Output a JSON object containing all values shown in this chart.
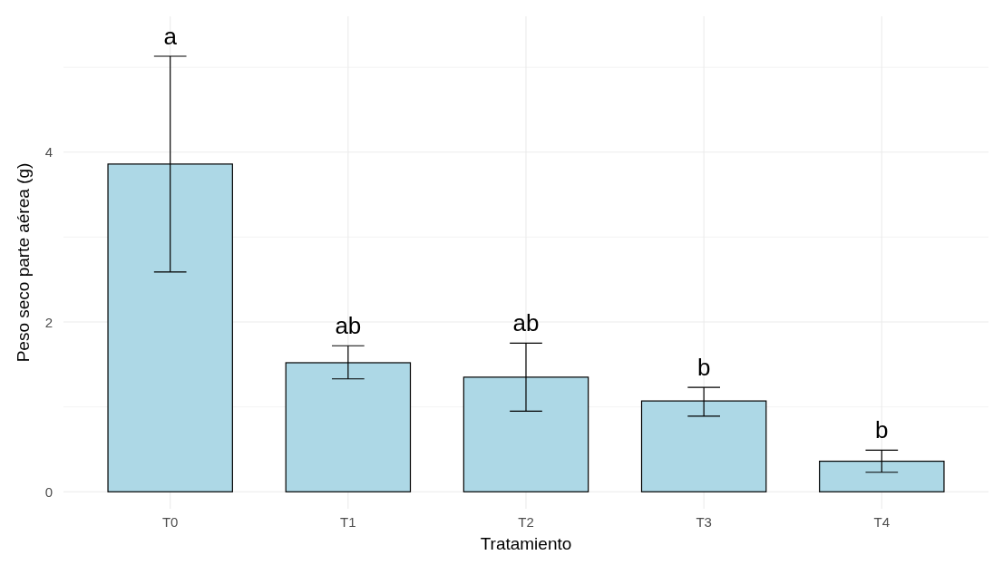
{
  "chart_data": {
    "type": "bar",
    "xlabel": "Tratamiento",
    "ylabel": "Peso seco parte aérea (g)",
    "categories": [
      "T0",
      "T1",
      "T2",
      "T3",
      "T4"
    ],
    "values": [
      3.86,
      1.52,
      1.35,
      1.07,
      0.36
    ],
    "errors": [
      [
        2.59,
        5.13
      ],
      [
        1.33,
        1.72
      ],
      [
        0.95,
        1.75
      ],
      [
        0.89,
        1.23
      ],
      [
        0.23,
        0.49
      ]
    ],
    "color": "#add8e6",
    "ylim": [
      -0.2,
      5.6
    ],
    "yticks": [
      0,
      {
        "value": 1,
        "label": null
      },
      2,
      {
        "value": 3,
        "label": null
      },
      4,
      {
        "value": 5,
        "label": null
      }
    ],
    "grid": true,
    "annotations": [
      "a",
      "ab",
      "ab",
      "b",
      "b"
    ]
  }
}
